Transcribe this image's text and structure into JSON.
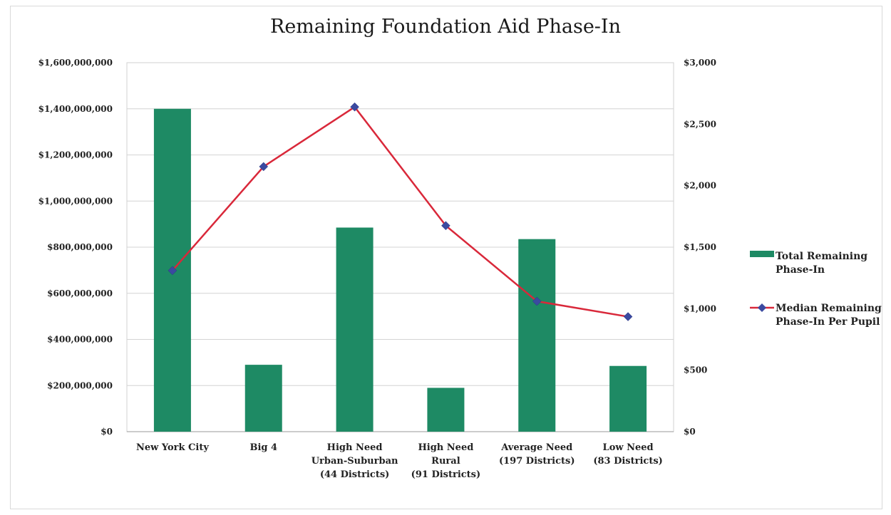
{
  "chart_data": {
    "type": "bar",
    "title": "Remaining Foundation Aid Phase-In",
    "categories": [
      [
        "New York City"
      ],
      [
        "Big 4"
      ],
      [
        "High Need",
        "Urban-Suburban",
        "(44 Districts)"
      ],
      [
        "High Need",
        "Rural",
        "(91 Districts)"
      ],
      [
        "Average Need",
        "(197 Districts)"
      ],
      [
        "Low Need",
        "(83 Districts)"
      ]
    ],
    "series": [
      {
        "name": "Total Remaining Phase-In",
        "type": "bar",
        "axis": "left",
        "color": "#1e8a64",
        "values": [
          1400000000,
          290000000,
          885000000,
          190000000,
          835000000,
          285000000
        ]
      },
      {
        "name": "Median Remaining Phase-In Per Pupil",
        "type": "line",
        "axis": "right",
        "color": "#d9283a",
        "marker_color": "#3b4aa0",
        "values": [
          1310,
          2155,
          2640,
          1675,
          1060,
          935
        ]
      }
    ],
    "y_left": {
      "ylim": [
        0,
        1600000000
      ],
      "ticks": [
        "$0",
        "$200,000,000",
        "$400,000,000",
        "$600,000,000",
        "$800,000,000",
        "$1,000,000,000",
        "$1,200,000,000",
        "$1,400,000,000",
        "$1,600,000,000"
      ]
    },
    "y_right": {
      "ylim": [
        0,
        3000
      ],
      "ticks": [
        "$0",
        "$500",
        "$1,000",
        "$1,500",
        "$2,000",
        "$2,500",
        "$3,000"
      ]
    },
    "legend_labels": [
      [
        "Total Remaining",
        "Phase-In"
      ],
      [
        "Median Remaining",
        "Phase-In Per Pupil"
      ]
    ],
    "legend_position": "right",
    "grid": true
  }
}
